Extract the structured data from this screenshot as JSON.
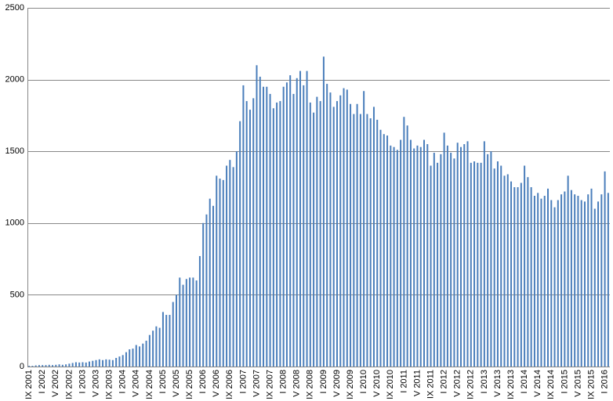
{
  "chart_data": {
    "type": "bar",
    "categories": [
      "IX 2001",
      null,
      null,
      null,
      "I 2002",
      null,
      null,
      null,
      "V 2002",
      null,
      null,
      null,
      "IX 2002",
      null,
      null,
      null,
      "I 2003",
      null,
      null,
      null,
      "V 2003",
      null,
      null,
      null,
      "IX 2003",
      null,
      null,
      null,
      "I 2004",
      null,
      null,
      null,
      "V 2004",
      null,
      null,
      null,
      "IX 2004",
      null,
      null,
      null,
      "I 2005",
      null,
      null,
      null,
      "V 2005",
      null,
      null,
      null,
      "IX 2005",
      null,
      null,
      null,
      "I 2006",
      null,
      null,
      null,
      "V 2006",
      null,
      null,
      null,
      "IX 2006",
      null,
      null,
      null,
      "I 2007",
      null,
      null,
      null,
      "V 2007",
      null,
      null,
      null,
      "IX 2007",
      null,
      null,
      null,
      "I 2008",
      null,
      null,
      null,
      "V 2008",
      null,
      null,
      null,
      "IX 2008",
      null,
      null,
      null,
      "I 2009",
      null,
      null,
      null,
      "V 2009",
      null,
      null,
      null,
      "IX 2009",
      null,
      null,
      null,
      "I 2010",
      null,
      null,
      null,
      "V 2010",
      null,
      null,
      null,
      "IX 2010",
      null,
      null,
      null,
      "I 2011",
      null,
      null,
      null,
      "V 2011",
      null,
      null,
      null,
      "IX 2011",
      null,
      null,
      null,
      "I 2012",
      null,
      null,
      null,
      "V 2012",
      null,
      null,
      null,
      "IX 2012",
      null,
      null,
      null,
      "I 2013",
      null,
      null,
      null,
      "V 2013",
      null,
      null,
      null,
      "IX 2013",
      null,
      null,
      null,
      "I 2014",
      null,
      null,
      null,
      "V 2014",
      null,
      null,
      null,
      "IX 2014",
      null,
      null,
      null,
      "I 2015",
      null,
      null,
      null,
      "V 2015",
      null,
      null,
      null,
      "IX 2015",
      null,
      null,
      null,
      "I 2016",
      null
    ],
    "values": [
      5,
      5,
      8,
      10,
      10,
      10,
      12,
      10,
      12,
      15,
      12,
      15,
      20,
      25,
      30,
      28,
      30,
      28,
      35,
      40,
      45,
      50,
      45,
      50,
      48,
      45,
      60,
      70,
      80,
      100,
      120,
      125,
      150,
      140,
      160,
      180,
      220,
      250,
      280,
      270,
      380,
      360,
      360,
      450,
      500,
      620,
      570,
      610,
      620,
      620,
      600,
      770,
      1000,
      1060,
      1170,
      1120,
      1330,
      1310,
      1300,
      1400,
      1440,
      1390,
      1500,
      1710,
      1960,
      1850,
      1790,
      1870,
      2100,
      2020,
      1950,
      1950,
      1900,
      1800,
      1840,
      1850,
      1950,
      1980,
      2030,
      1900,
      2010,
      2060,
      1960,
      2060,
      1840,
      1770,
      1880,
      1850,
      2160,
      1970,
      1910,
      1810,
      1850,
      1890,
      1940,
      1930,
      1830,
      1760,
      1830,
      1760,
      1920,
      1760,
      1730,
      1810,
      1720,
      1650,
      1620,
      1610,
      1540,
      1530,
      1510,
      1580,
      1740,
      1680,
      1580,
      1520,
      1540,
      1530,
      1580,
      1550,
      1400,
      1490,
      1420,
      1480,
      1630,
      1540,
      1490,
      1450,
      1560,
      1530,
      1550,
      1570,
      1420,
      1430,
      1420,
      1420,
      1570,
      1480,
      1500,
      1380,
      1430,
      1400,
      1330,
      1340,
      1290,
      1250,
      1250,
      1280,
      1400,
      1320,
      1250,
      1190,
      1210,
      1170,
      1190,
      1240,
      1160,
      1110,
      1160,
      1200,
      1220,
      1330,
      1230,
      1200,
      1190,
      1160,
      1150,
      1200,
      1240,
      1100,
      1150,
      1200,
      1360,
      1210
    ],
    "color": "#4a7ebb",
    "ylim": [
      0,
      2500
    ],
    "yticks": [
      0,
      500,
      1000,
      1500,
      2000,
      2500
    ],
    "grid": true
  }
}
